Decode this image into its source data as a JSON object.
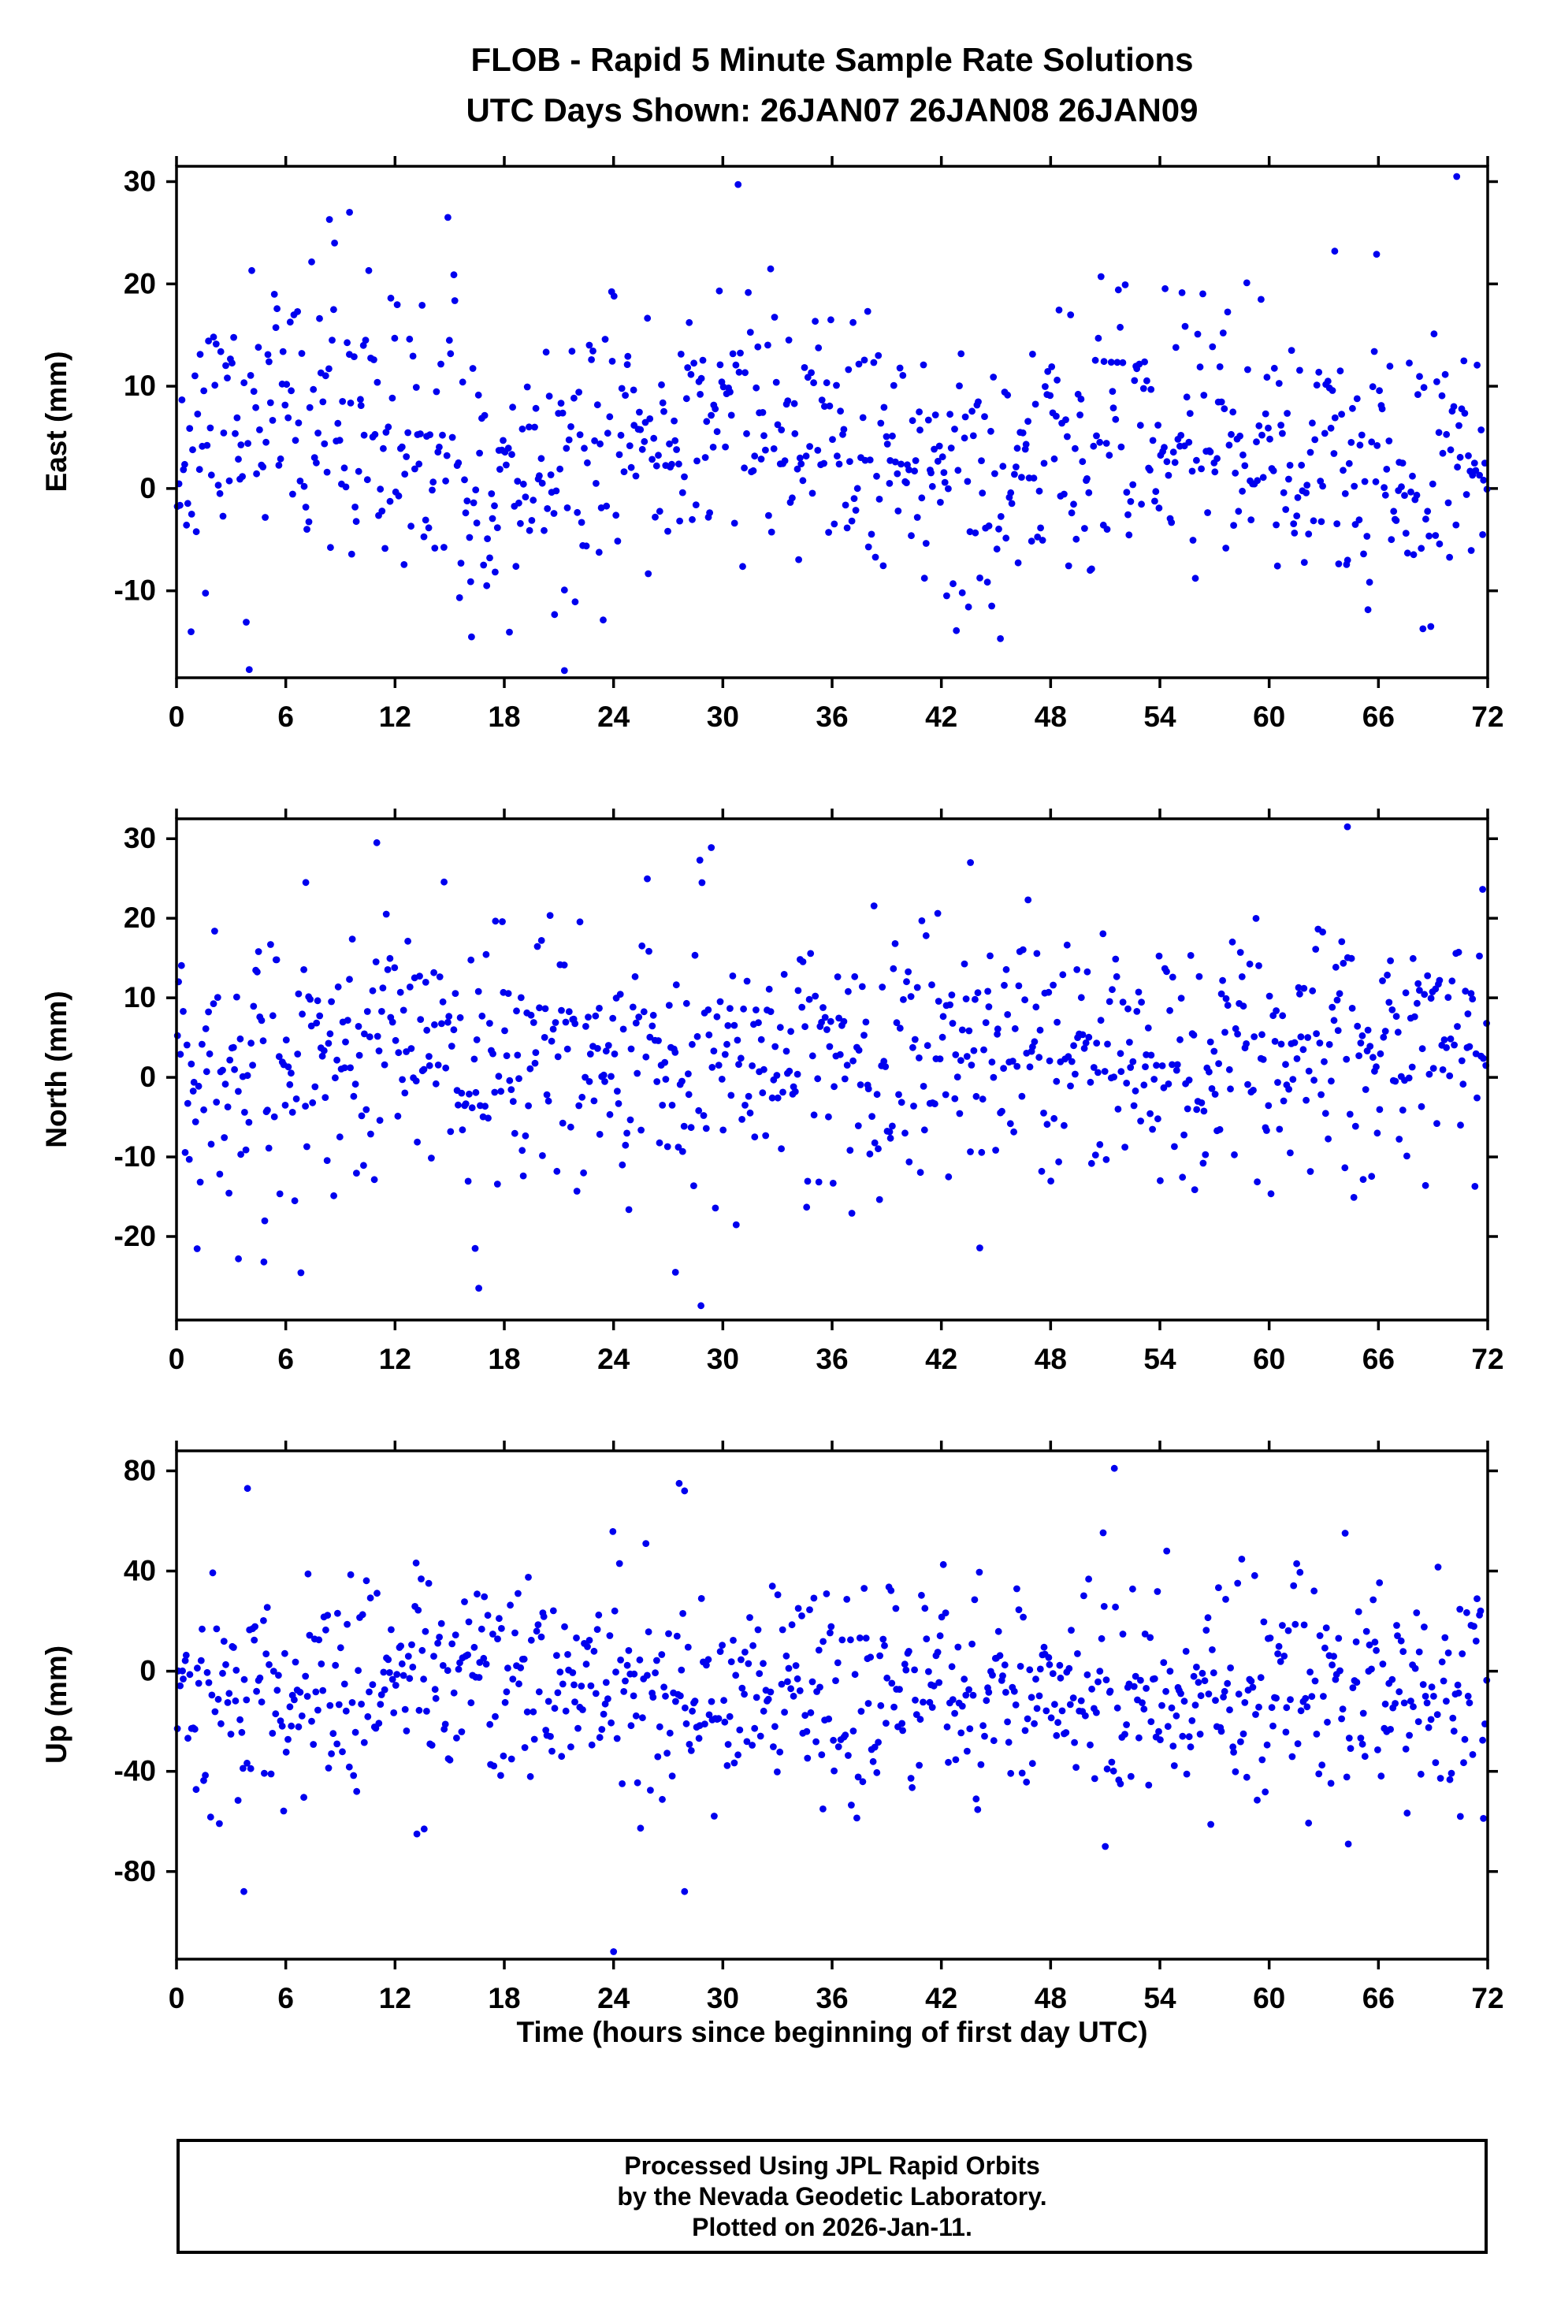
{
  "title": {
    "line1": "FLOB - Rapid 5 Minute Sample Rate Solutions",
    "line2": "UTC Days Shown:  26JAN07 26JAN08 26JAN09"
  },
  "xlabel": "Time (hours since beginning of first day UTC)",
  "footer": {
    "line1": "Processed Using JPL Rapid Orbits",
    "line2": "by the Nevada Geodetic Laboratory.",
    "line3": "Plotted on 2026-Jan-11."
  },
  "marker_color": "#0000ee",
  "frame_color": "#000000",
  "chart_data": [
    {
      "type": "scatter",
      "name": "east",
      "ylabel": "East (mm)",
      "xlim": [
        0,
        72
      ],
      "ylim": [
        -18.5,
        31.5
      ],
      "xticks": [
        0,
        6,
        12,
        18,
        24,
        30,
        36,
        42,
        48,
        54,
        60,
        66,
        72
      ],
      "yticks": [
        -10,
        0,
        10,
        20,
        30
      ],
      "n_points": 840,
      "mean": 4.0,
      "std": 6.6,
      "wave_amp": 3.0,
      "wave_phase": 0.0,
      "seed": 11,
      "outliers": [
        [
          70.3,
          30.5
        ],
        [
          21.3,
          -17.8
        ],
        [
          16.2,
          -14.5
        ],
        [
          0.8,
          -14.0
        ],
        [
          9.5,
          27.0
        ],
        [
          8.4,
          26.3
        ],
        [
          14.9,
          26.5
        ],
        [
          63.6,
          23.2
        ],
        [
          65.9,
          22.9
        ]
      ]
    },
    {
      "type": "scatter",
      "name": "north",
      "ylabel": "North (mm)",
      "xlim": [
        0,
        72
      ],
      "ylim": [
        -30.5,
        32.5
      ],
      "xticks": [
        0,
        6,
        12,
        18,
        24,
        30,
        36,
        42,
        48,
        54,
        60,
        66,
        72
      ],
      "yticks": [
        -20,
        -10,
        0,
        10,
        20,
        30
      ],
      "n_points": 840,
      "mean": 3.0,
      "std": 7.8,
      "wave_amp": 1.5,
      "wave_phase": 3.0,
      "seed": 22,
      "outliers": [
        [
          64.3,
          31.5
        ],
        [
          11.0,
          29.5
        ],
        [
          43.6,
          27.0
        ],
        [
          7.1,
          24.5
        ],
        [
          28.8,
          -28.7
        ],
        [
          16.6,
          -26.5
        ],
        [
          4.8,
          -23.2
        ],
        [
          3.4,
          -22.8
        ],
        [
          16.4,
          -21.5
        ],
        [
          27.4,
          -24.5
        ]
      ]
    },
    {
      "type": "scatter",
      "name": "up",
      "ylabel": "Up (mm)",
      "xlim": [
        0,
        72
      ],
      "ylim": [
        -115,
        88
      ],
      "xticks": [
        0,
        6,
        12,
        18,
        24,
        30,
        36,
        42,
        48,
        54,
        60,
        66,
        72
      ],
      "yticks": [
        -80,
        -40,
        0,
        40,
        80
      ],
      "n_points": 840,
      "mean": -8.0,
      "std": 21.0,
      "wave_amp": 4.0,
      "wave_phase": 4.0,
      "seed": 33,
      "outliers": [
        [
          51.5,
          81.0
        ],
        [
          27.6,
          75.0
        ],
        [
          27.9,
          72.0
        ],
        [
          3.9,
          73.0
        ],
        [
          24.0,
          -112.0
        ],
        [
          27.9,
          -88.0
        ],
        [
          3.7,
          -88.0
        ],
        [
          13.2,
          -65.0
        ],
        [
          13.6,
          -63.0
        ],
        [
          51.0,
          -70.0
        ],
        [
          35.5,
          -55.0
        ],
        [
          70.5,
          -58.0
        ]
      ]
    }
  ]
}
